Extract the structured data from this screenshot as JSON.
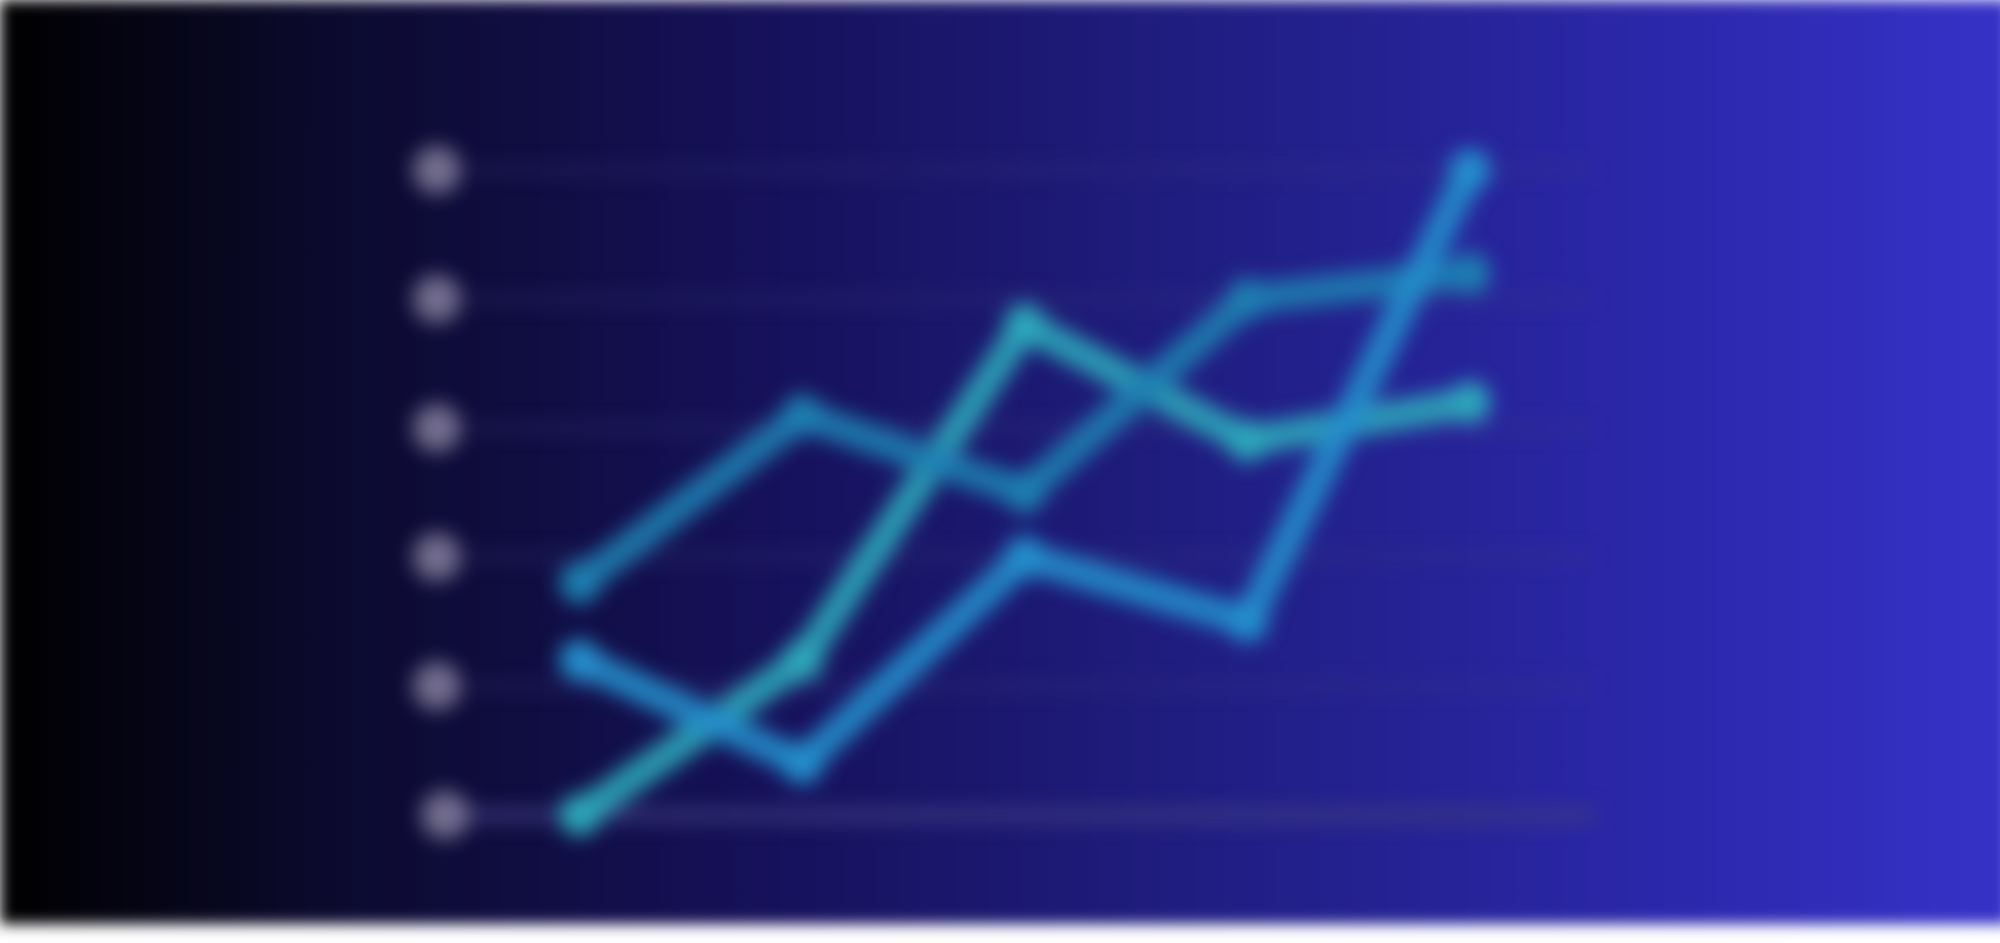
{
  "chart_data": {
    "type": "line",
    "x": [
      1,
      2,
      3,
      4,
      5
    ],
    "yticks": [
      0,
      1,
      2,
      3,
      4,
      5
    ],
    "ytick_labels": [
      "",
      "",
      "",
      "",
      "",
      ""
    ],
    "ylim": [
      0,
      5
    ],
    "grid": true,
    "series": [
      {
        "color": "#2ca9ba",
        "values": [
          0,
          1.2,
          3.8,
          2.9,
          3.2
        ]
      },
      {
        "color": "#1e7fb1",
        "values": [
          1.8,
          3.1,
          2.5,
          4.0,
          4.2
        ]
      },
      {
        "color": "#248fcc",
        "values": [
          1.2,
          0.4,
          2.0,
          1.5,
          5.0
        ]
      }
    ],
    "background": {
      "left_color": "#000000",
      "mid_color": "#16115a",
      "right_color": "#3632c8"
    },
    "gridline_color": "#3f3d80",
    "tick_marker_color": "#cfc8db"
  }
}
